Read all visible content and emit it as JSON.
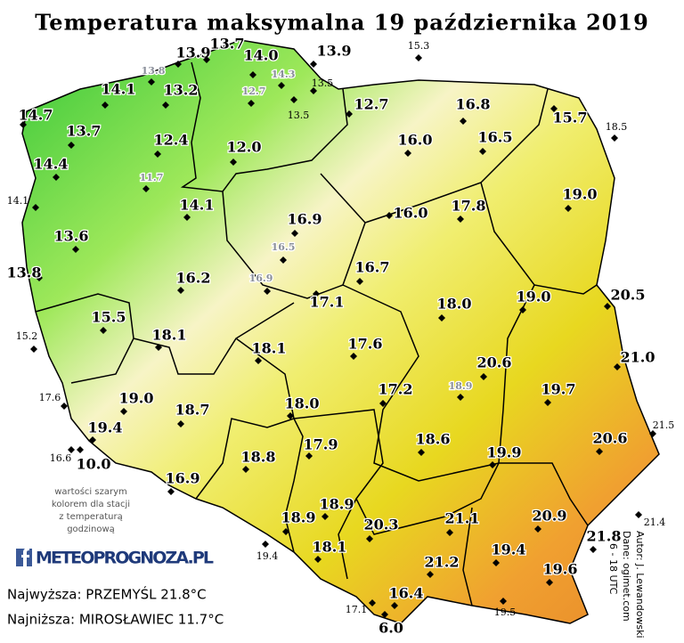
{
  "title": "Temperatura maksymalna 19 października 2019",
  "stations": [
    "13.9",
    "13.7",
    "14.0",
    "13.9",
    "14.1",
    "13.2",
    "14.7",
    "13.7",
    "12.4",
    "12.0",
    "12.7",
    "16.8",
    "15.7",
    "16.0",
    "16.5",
    "14.4",
    "19.0",
    "14.1",
    "16.9",
    "16.0",
    "17.8",
    "13.6",
    "13.8",
    "16.2",
    "16.7",
    "17.1",
    "18.0",
    "19.0",
    "20.5",
    "15.5",
    "18.1",
    "18.1",
    "17.6",
    "20.6",
    "21.0",
    "17.2",
    "19.7",
    "19.0",
    "18.7",
    "18.0",
    "19.4",
    "18.6",
    "19.9",
    "20.6",
    "17.9",
    "18.8",
    "10.0",
    "16.9",
    "18.9",
    "18.9",
    "20.3",
    "21.1",
    "20.9",
    "21.8",
    "18.1",
    "19.4",
    "19.6",
    "21.2",
    "16.4",
    "6.0",
    "15.3",
    "18.5",
    "14.1",
    "15.2",
    "17.6",
    "16.6",
    "21.5",
    "21.4",
    "19.4",
    "17.1",
    "19.5",
    "13.5",
    "13.5"
  ],
  "hourly_stations": [
    "13.8",
    "14.3",
    "12.7",
    "11.7",
    "16.5",
    "16.9",
    "18.9"
  ],
  "note": [
    "wartości szarym",
    "kolorem dla stacji",
    "z temperaturą",
    "godzinową"
  ],
  "logo": "METEOPROGNOZA.PL",
  "highest": "Najwyższa: PRZEMYŚL 21.8°C",
  "lowest": "Najniższa: MIROSŁAWIEC 11.7°C",
  "credits": [
    "Autor: J. Lewandowski",
    "Dane: ogimet.com",
    "6 - 18 UTC"
  ]
}
